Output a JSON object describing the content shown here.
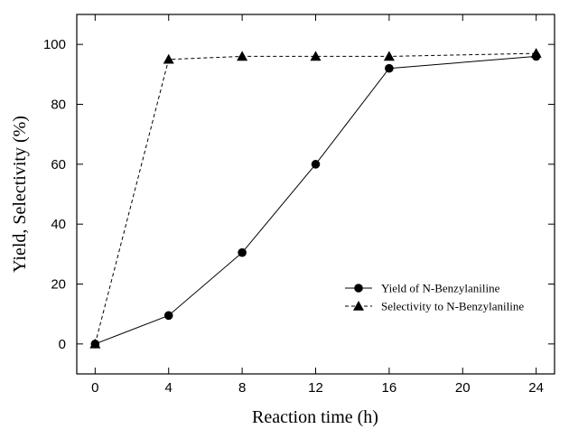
{
  "chart_data": {
    "type": "line",
    "xlabel": "Reaction time (h)",
    "ylabel": "Yield, Selectivity (%)",
    "xlim": [
      -1,
      25
    ],
    "ylim": [
      -10,
      110
    ],
    "xticks": [
      0,
      4,
      8,
      12,
      16,
      20,
      24
    ],
    "yticks": [
      0,
      20,
      40,
      60,
      80,
      100
    ],
    "grid": false,
    "legend_position": "lower-right",
    "series": [
      {
        "name": "Yield of N-Benzylaniline",
        "marker": "circle",
        "line_style": "solid",
        "color": "#000000",
        "x": [
          0,
          4,
          8,
          12,
          16,
          24
        ],
        "y": [
          0,
          9.5,
          30.5,
          60,
          92,
          96
        ]
      },
      {
        "name": "Selectivity to N-Benzylaniline",
        "marker": "triangle",
        "line_style": "dashed",
        "color": "#000000",
        "x": [
          0,
          4,
          8,
          16,
          24,
          12
        ],
        "y": [
          0,
          95,
          96,
          96,
          97,
          96
        ]
      }
    ]
  }
}
